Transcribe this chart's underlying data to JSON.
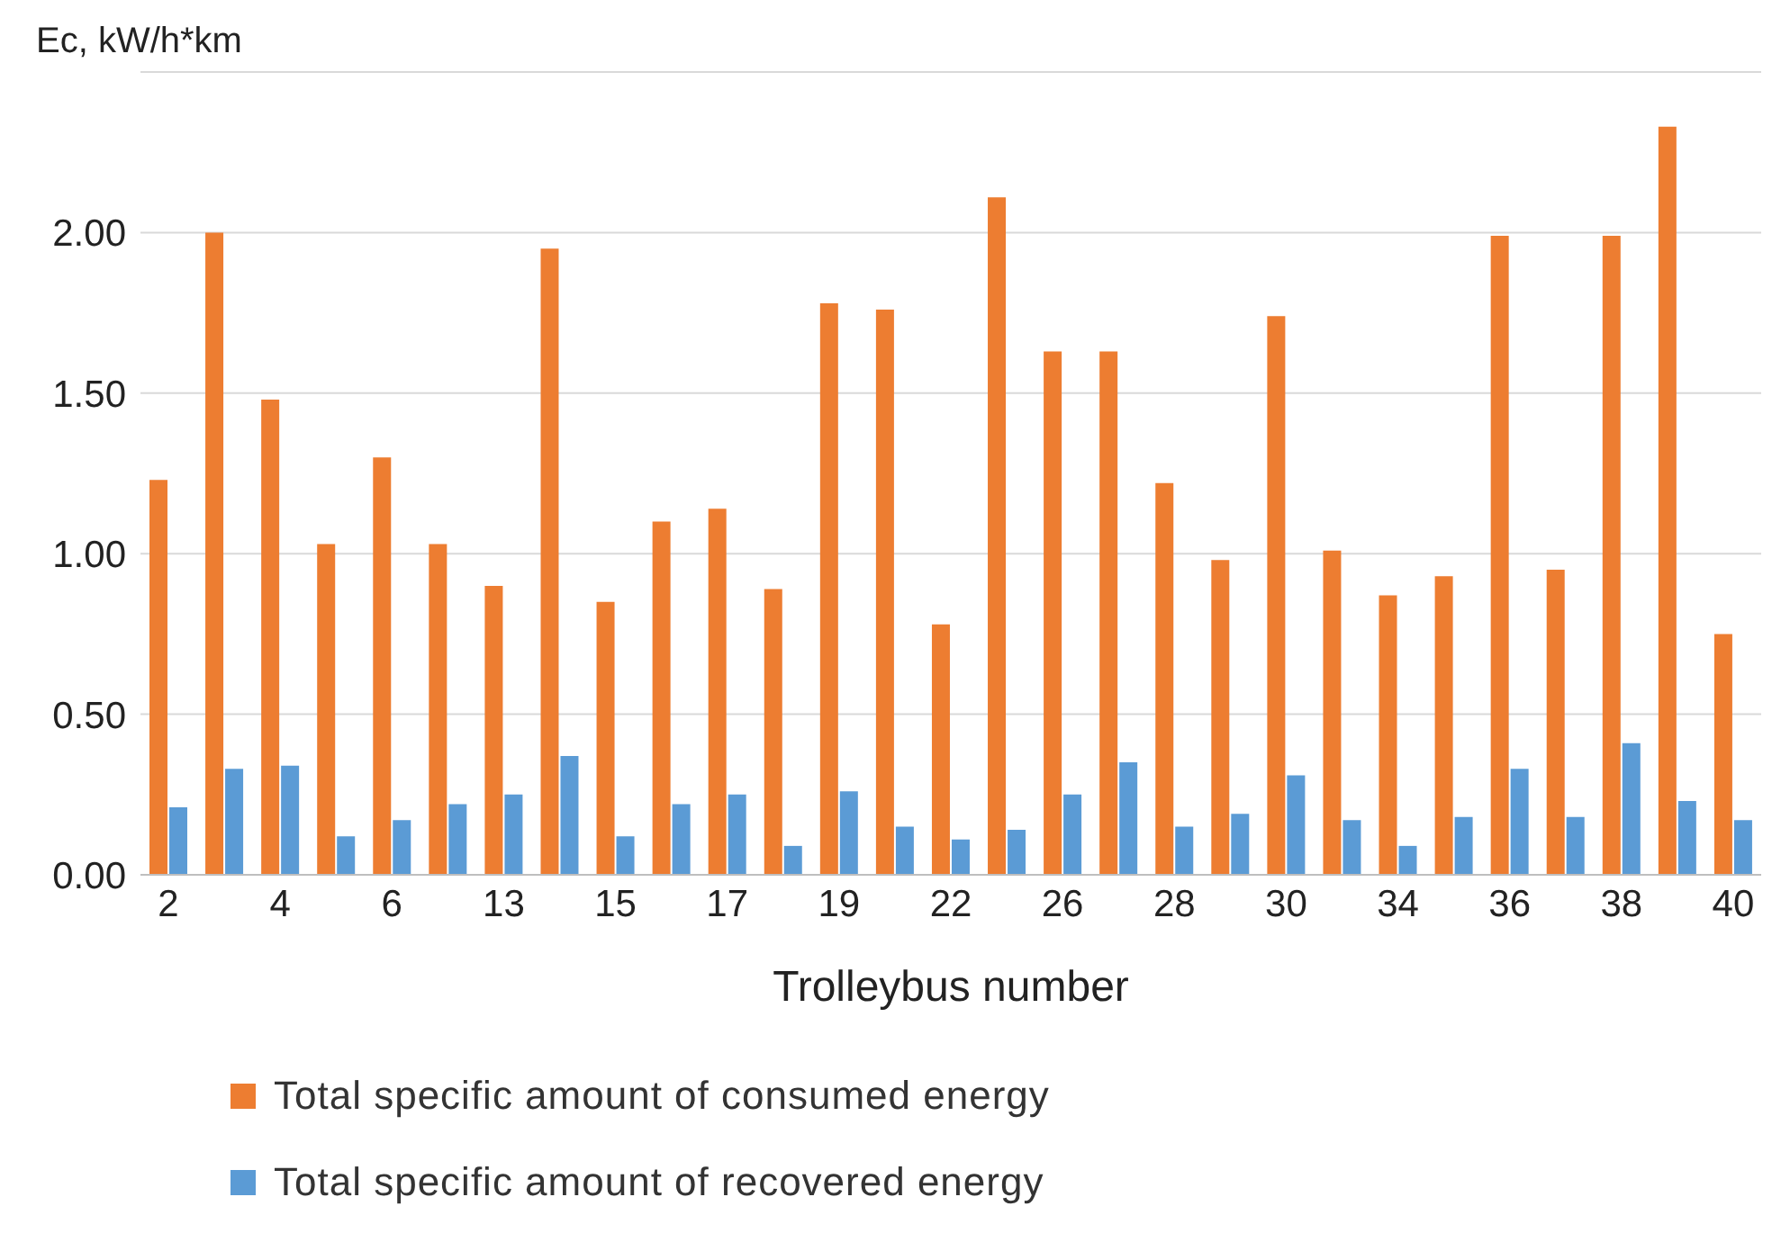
{
  "chart_data": {
    "type": "bar",
    "ylabel": "Ec, kW/h*km",
    "xlabel": "Trolleybus number",
    "categories": [
      "2",
      null,
      "4",
      null,
      "6",
      null,
      "13",
      null,
      "15",
      null,
      "17",
      null,
      "19",
      null,
      "22",
      null,
      "26",
      null,
      "28",
      null,
      "30",
      null,
      "34",
      null,
      "36",
      null,
      "38",
      null,
      "40"
    ],
    "series": [
      {
        "name": "Total specific amount of consumed energy",
        "color": "#ed7d31",
        "values": [
          1.23,
          2.0,
          1.48,
          1.03,
          1.3,
          1.03,
          0.9,
          1.95,
          0.85,
          1.1,
          1.14,
          0.89,
          1.78,
          1.76,
          0.78,
          2.11,
          1.63,
          1.63,
          1.22,
          0.98,
          1.74,
          1.01,
          0.87,
          0.93,
          1.99,
          0.95,
          1.99,
          2.33,
          0.75
        ]
      },
      {
        "name": "Total specific amount of recovered energy",
        "color": "#5b9bd5",
        "values": [
          0.21,
          0.33,
          0.34,
          0.12,
          0.17,
          0.22,
          0.25,
          0.37,
          0.12,
          0.22,
          0.25,
          0.09,
          0.26,
          0.15,
          0.11,
          0.14,
          0.25,
          0.35,
          0.15,
          0.19,
          0.31,
          0.17,
          0.09,
          0.18,
          0.33,
          0.18,
          0.41,
          0.23,
          0.17
        ]
      }
    ],
    "ylim": [
      0,
      2.5
    ],
    "yticks": [
      {
        "value": 0,
        "label": "0.00"
      },
      {
        "value": 0.5,
        "label": "0.50"
      },
      {
        "value": 1,
        "label": "1.00"
      },
      {
        "value": 1.5,
        "label": "1.50"
      },
      {
        "value": 2,
        "label": "2.00"
      },
      {
        "value": 2.5,
        "label": null
      }
    ],
    "grid": "y",
    "legend": "bottom"
  }
}
